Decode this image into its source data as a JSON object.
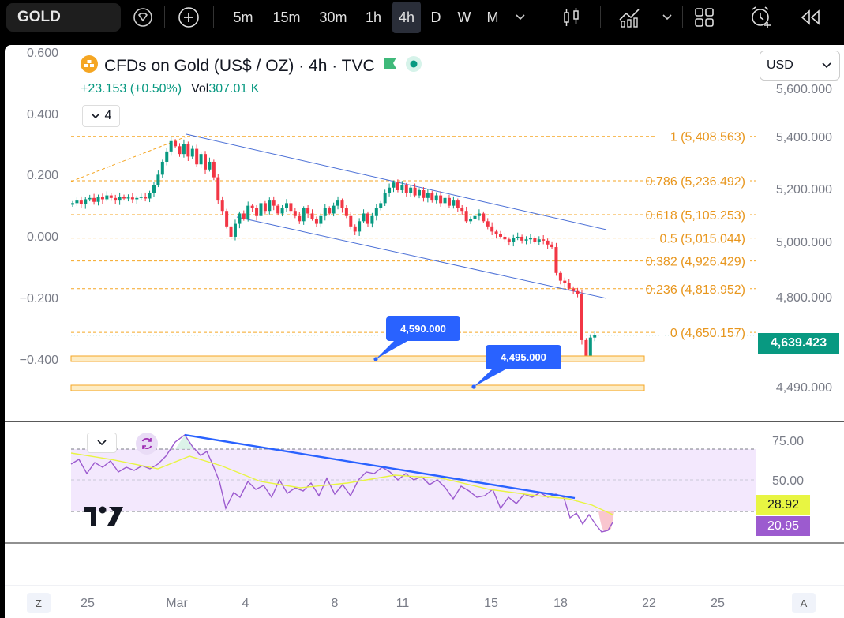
{
  "toolbar": {
    "symbol": "GOLD",
    "intervals": [
      "5m",
      "15m",
      "30m",
      "1h",
      "4h",
      "D",
      "W",
      "M"
    ],
    "active_interval": "4h",
    "icons": [
      "diamond-icon",
      "plus-circle-icon",
      "chevron-down-icon",
      "candles-icon",
      "indicators-icon",
      "chevron-down-icon",
      "layout-icon",
      "alert-icon",
      "replay-icon"
    ]
  },
  "legend": {
    "title": "CFDs on Gold (US$ / OZ) · 4h · TVC",
    "change": "+23.153 (+0.50%)",
    "vol_label": "Vol",
    "vol_value": "307.01 K",
    "indicators_count": "4"
  },
  "currency": "USD",
  "price_axis": [
    "5,600.000",
    "5,400.000",
    "5,200.000",
    "5,000.000",
    "4,800.000",
    "4,490.000"
  ],
  "left_axis": [
    "0.600",
    "0.400",
    "0.200",
    "0.000",
    "−0.200",
    "−0.400"
  ],
  "last_price": "4,639.423",
  "fibonacci": [
    {
      "label": "1 (5,408.563)",
      "value": 5408.563
    },
    {
      "label": "0.786 (5,236.492)",
      "value": 5236.492
    },
    {
      "label": "0.618 (5,105.253)",
      "value": 5105.253
    },
    {
      "label": "0.5 (5,015.044)",
      "value": 5015.044
    },
    {
      "label": "0.382 (4,926.429)",
      "value": 4926.429
    },
    {
      "label": "0.236 (4,818.952)",
      "value": 4818.952
    },
    {
      "label": "0 (4,650.157)",
      "value": 4650.157
    }
  ],
  "callouts": [
    {
      "label": "4,590.000",
      "value": 4590
    },
    {
      "label": "4,495.000",
      "value": 4495
    }
  ],
  "rsi": {
    "axis": [
      "75.00",
      "50.00"
    ],
    "ma_value": "28.92",
    "rsi_value": "20.95",
    "colors": {
      "rsi": "#9c5bcf",
      "ma": "#e8f542",
      "band": "#f3e8fd"
    }
  },
  "time_axis": [
    "25",
    "Mar",
    "4",
    "8",
    "11",
    "15",
    "18",
    "22",
    "25"
  ],
  "corners": {
    "left": "Z",
    "right": "A"
  },
  "colors": {
    "up": "#089981",
    "down": "#f23645",
    "fib": "#f5a623",
    "channel": "#2962ff"
  }
}
